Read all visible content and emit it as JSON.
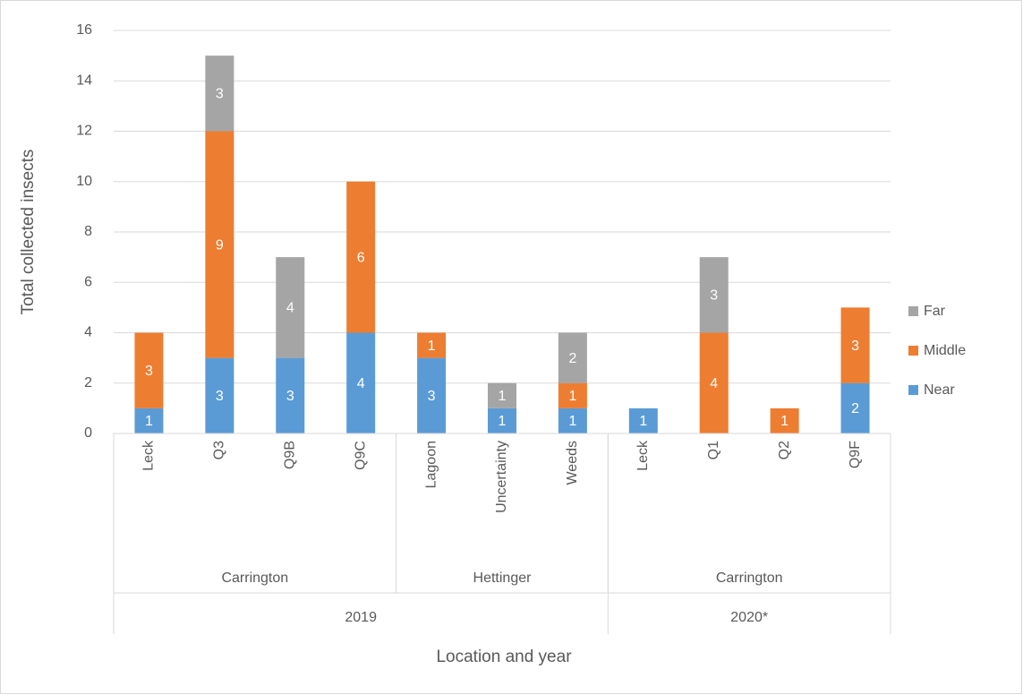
{
  "chart_data": {
    "type": "stacked_bar",
    "x_label": "Location and year",
    "y_label": "Total collected insects",
    "groups": [
      {
        "name": "2019",
        "groups": [
          {
            "name": "Carrington",
            "categories": [
              "Leck",
              "Q3",
              "Q9B",
              "Q9C"
            ]
          },
          {
            "name": "Hettinger",
            "categories": [
              "Lagoon",
              "Uncertainty",
              "Weeds"
            ]
          }
        ]
      },
      {
        "name": "2020*",
        "groups": [
          {
            "name": "Carrington",
            "categories": [
              "Leck",
              "Q1",
              "Q2",
              "Q9F"
            ]
          }
        ]
      }
    ],
    "series": [
      {
        "name": "Near",
        "color": "#5b9bd5",
        "values": [
          1,
          3,
          3,
          4,
          3,
          1,
          1,
          1,
          null,
          null,
          2
        ]
      },
      {
        "name": "Middle",
        "color": "#ed7d31",
        "values": [
          3,
          9,
          null,
          6,
          1,
          null,
          1,
          null,
          4,
          1,
          3
        ]
      },
      {
        "name": "Far",
        "color": "#a5a5a5",
        "values": [
          null,
          3,
          4,
          null,
          null,
          1,
          2,
          null,
          3,
          null,
          null
        ]
      }
    ],
    "ylim": [
      0,
      16
    ],
    "yticks": [
      0,
      2,
      4,
      6,
      8,
      10,
      12,
      14,
      16
    ],
    "grid": true,
    "legend": "right"
  }
}
